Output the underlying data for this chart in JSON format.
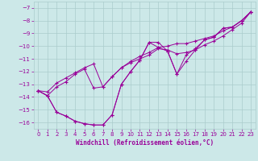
{
  "xlabel": "Windchill (Refroidissement éolien,°C)",
  "x_values": [
    0,
    1,
    2,
    3,
    4,
    5,
    6,
    7,
    8,
    9,
    10,
    11,
    12,
    13,
    14,
    15,
    16,
    17,
    18,
    19,
    20,
    21,
    22,
    23
  ],
  "line1": [
    -13.5,
    -13.9,
    -15.2,
    -15.5,
    -15.9,
    -16.1,
    -16.2,
    -16.2,
    -15.4,
    -13.0,
    -12.0,
    -11.1,
    -9.7,
    -10.1,
    -10.4,
    -12.2,
    -11.2,
    -10.3,
    -9.5,
    -9.3,
    -8.6,
    -8.5,
    -8.0,
    -7.3
  ],
  "line2": [
    -13.5,
    -13.9,
    -15.2,
    -15.5,
    -15.9,
    -16.1,
    -16.2,
    -16.2,
    -15.4,
    -13.0,
    -12.0,
    -11.1,
    -9.7,
    -9.7,
    -10.4,
    -12.2,
    -10.7,
    -10.2,
    -9.5,
    -9.3,
    -8.6,
    -8.5,
    -8.0,
    -7.3
  ],
  "line3": [
    -13.5,
    -13.9,
    -13.2,
    -12.8,
    -12.2,
    -11.8,
    -13.3,
    -13.2,
    -12.4,
    -11.7,
    -11.3,
    -11.0,
    -10.7,
    -10.2,
    -10.3,
    -10.6,
    -10.5,
    -10.3,
    -9.9,
    -9.6,
    -9.2,
    -8.7,
    -8.2,
    -7.3
  ],
  "line4": [
    -13.5,
    -13.6,
    -12.9,
    -12.5,
    -12.1,
    -11.7,
    -11.4,
    -13.2,
    -12.4,
    -11.7,
    -11.2,
    -10.8,
    -10.5,
    -10.1,
    -10.0,
    -9.8,
    -9.8,
    -9.6,
    -9.4,
    -9.2,
    -8.8,
    -8.5,
    -8.0,
    -7.3
  ],
  "line_color": "#990099",
  "background_color": "#cce8e8",
  "grid_color": "#aacccc",
  "ylim": [
    -16.5,
    -6.5
  ],
  "xlim": [
    -0.5,
    23.5
  ],
  "yticks": [
    -16,
    -15,
    -14,
    -13,
    -12,
    -11,
    -10,
    -9,
    -8,
    -7
  ],
  "xticks": [
    0,
    1,
    2,
    3,
    4,
    5,
    6,
    7,
    8,
    9,
    10,
    11,
    12,
    13,
    14,
    15,
    16,
    17,
    18,
    19,
    20,
    21,
    22,
    23
  ]
}
